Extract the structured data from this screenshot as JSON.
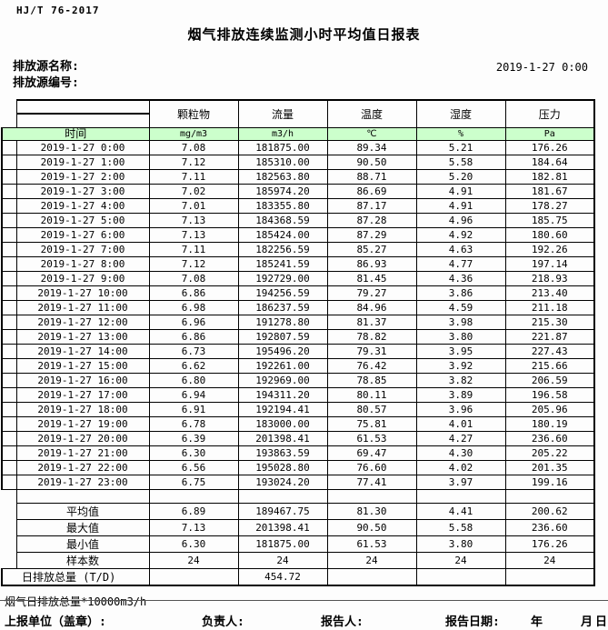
{
  "meta": {
    "standard": "HJ/T  76-2017",
    "title": "烟气排放连续监测小时平均值日报表",
    "source_name_label": "排放源名称:",
    "source_code_label": "排放源编号:",
    "datetime": "2019-1-27  0:00"
  },
  "table": {
    "time_header": "时间",
    "columns": [
      "颗粒物",
      "流量",
      "温度",
      "湿度",
      "压力"
    ],
    "units": [
      "mg/m3",
      "m3/h",
      "℃",
      "%",
      "Pa"
    ],
    "rows": [
      {
        "time": "2019-1-27  0:00",
        "values": [
          "7.08",
          "181875.00",
          "89.34",
          "5.21",
          "176.26"
        ]
      },
      {
        "time": "2019-1-27  1:00",
        "values": [
          "7.12",
          "185310.00",
          "90.50",
          "5.58",
          "184.64"
        ]
      },
      {
        "time": "2019-1-27  2:00",
        "values": [
          "7.11",
          "182563.80",
          "88.71",
          "5.20",
          "182.81"
        ]
      },
      {
        "time": "2019-1-27  3:00",
        "values": [
          "7.02",
          "185974.20",
          "86.69",
          "4.91",
          "181.67"
        ]
      },
      {
        "time": "2019-1-27  4:00",
        "values": [
          "7.01",
          "183355.80",
          "87.17",
          "4.91",
          "178.27"
        ]
      },
      {
        "time": "2019-1-27  5:00",
        "values": [
          "7.13",
          "184368.59",
          "87.28",
          "4.96",
          "185.75"
        ]
      },
      {
        "time": "2019-1-27  6:00",
        "values": [
          "7.13",
          "185424.00",
          "87.29",
          "4.92",
          "180.60"
        ]
      },
      {
        "time": "2019-1-27  7:00",
        "values": [
          "7.11",
          "182256.59",
          "85.27",
          "4.63",
          "192.26"
        ]
      },
      {
        "time": "2019-1-27  8:00",
        "values": [
          "7.12",
          "185241.59",
          "86.93",
          "4.77",
          "197.14"
        ]
      },
      {
        "time": "2019-1-27  9:00",
        "values": [
          "7.08",
          "192729.00",
          "81.45",
          "4.36",
          "218.93"
        ]
      },
      {
        "time": "2019-1-27 10:00",
        "values": [
          "6.86",
          "194256.59",
          "79.27",
          "3.86",
          "213.40"
        ]
      },
      {
        "time": "2019-1-27 11:00",
        "values": [
          "6.98",
          "186237.59",
          "84.96",
          "4.59",
          "211.18"
        ]
      },
      {
        "time": "2019-1-27 12:00",
        "values": [
          "6.96",
          "191278.80",
          "81.37",
          "3.98",
          "215.30"
        ]
      },
      {
        "time": "2019-1-27 13:00",
        "values": [
          "6.86",
          "192807.59",
          "78.82",
          "3.80",
          "221.87"
        ]
      },
      {
        "time": "2019-1-27 14:00",
        "values": [
          "6.73",
          "195496.20",
          "79.31",
          "3.95",
          "227.43"
        ]
      },
      {
        "time": "2019-1-27 15:00",
        "values": [
          "6.62",
          "192261.00",
          "76.42",
          "3.92",
          "215.66"
        ]
      },
      {
        "time": "2019-1-27 16:00",
        "values": [
          "6.80",
          "192969.00",
          "78.85",
          "3.82",
          "206.59"
        ]
      },
      {
        "time": "2019-1-27 17:00",
        "values": [
          "6.94",
          "194311.20",
          "80.11",
          "3.89",
          "196.58"
        ]
      },
      {
        "time": "2019-1-27 18:00",
        "values": [
          "6.91",
          "192194.41",
          "80.57",
          "3.96",
          "205.96"
        ]
      },
      {
        "time": "2019-1-27 19:00",
        "values": [
          "6.78",
          "183000.00",
          "75.81",
          "4.01",
          "180.19"
        ]
      },
      {
        "time": "2019-1-27 20:00",
        "values": [
          "6.39",
          "201398.41",
          "61.53",
          "4.27",
          "236.60"
        ]
      },
      {
        "time": "2019-1-27 21:00",
        "values": [
          "6.30",
          "193863.59",
          "69.47",
          "4.30",
          "205.22"
        ]
      },
      {
        "time": "2019-1-27 22:00",
        "values": [
          "6.56",
          "195028.80",
          "76.60",
          "4.02",
          "201.35"
        ]
      },
      {
        "time": "2019-1-27 23:00",
        "values": [
          "6.75",
          "193024.20",
          "77.41",
          "3.97",
          "199.16"
        ]
      }
    ],
    "summary_stats": [
      {
        "label": "平均值",
        "values": [
          "6.89",
          "189467.75",
          "81.30",
          "4.41",
          "200.62"
        ]
      },
      {
        "label": "最大值",
        "values": [
          "7.13",
          "201398.41",
          "90.50",
          "5.58",
          "236.60"
        ]
      },
      {
        "label": "最小值",
        "values": [
          "6.30",
          "181875.00",
          "61.53",
          "3.80",
          "176.26"
        ]
      },
      {
        "label": "样本数",
        "values": [
          "24",
          "24",
          "24",
          "24",
          "24"
        ]
      }
    ],
    "total_row": {
      "label": "日排放总量 (T/D)",
      "values": [
        "",
        "454.72",
        "",
        "",
        ""
      ]
    }
  },
  "footer": {
    "note": "烟气日排放总量*10000m3/h",
    "report_unit_label": "上报单位（盖章）:",
    "responsible_label": "负责人:",
    "reporter_label": "报告人:",
    "report_date_label": "报告日期:",
    "year_label": "年",
    "month_label": "月",
    "day_label": "日"
  },
  "colors": {
    "header_green": "#ccffcc"
  }
}
